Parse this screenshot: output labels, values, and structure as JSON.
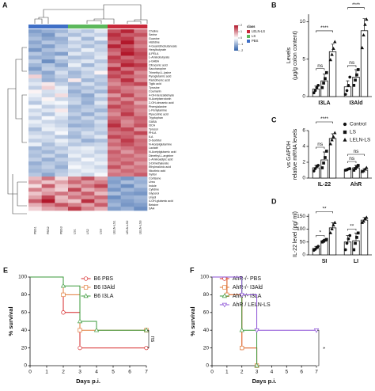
{
  "chart_data": [
    {
      "type": "heatmap",
      "panel": "A",
      "legend_title": "class",
      "classes": [
        {
          "name": "LELN-LS",
          "color": "#c8283a"
        },
        {
          "name": "LS",
          "color": "#5cb85c"
        },
        {
          "name": "PBS",
          "color": "#3f6fc6"
        }
      ],
      "columns": [
        "PBS1",
        "PBS2",
        "PBS3",
        "LS1",
        "LS2",
        "LS3",
        "LELN-LS1",
        "LELN-LS2",
        "LELN-LS3"
      ],
      "column_colors": [
        "#3f6fc6",
        "#3f6fc6",
        "#3f6fc6",
        "#5cb85c",
        "#5cb85c",
        "#5cb85c",
        "#c8283a",
        "#c8283a",
        "#c8283a"
      ],
      "zlim": [
        -2,
        2
      ],
      "zticks": [
        -2,
        -1,
        0,
        1,
        2
      ],
      "rows": [
        "Choline",
        "Serine",
        "Guanine",
        "Histidine",
        "4-Guanidinobutanoate",
        "Hexylbutyrate",
        "β-PELA",
        "L-Aminobutyrate",
        "γ-GABA",
        "Citraconic acid",
        "Saccharopine",
        "Trimethyl-L-lysine",
        "Pyroglutamic acid",
        "Pantothenic acid",
        "Tiglic acid",
        "Tyrosine",
        "Coumarin",
        "4-OH-benzaldehyde",
        "N-Acetylserotonin",
        "2-OH-cinnamic acid",
        "Phenylalanine",
        "L-Pentylamine",
        "Pipecolinic acid",
        "Tryptophan",
        "GABA",
        "I3CA",
        "Tyrosol",
        "PHLA",
        "ILA",
        "D-Sorbitol",
        "N-Acetylglutamine",
        "Lactate",
        "N-Acetylglutamic acid",
        "Dimethyl-L-arginine",
        "L-Aminoadipic acid",
        "3-Dimethylurate",
        "Ethylmalonic acid",
        "Nicotinic acid",
        "Xylitol",
        "Cortisone",
        "Urea",
        "Indole",
        "Cytidine",
        "Glycerol",
        "Uracil",
        "4-OH-glutamic acid",
        "Betaine",
        "SAH"
      ],
      "values": [
        [
          -1.2,
          -1.0,
          -0.9,
          -0.5,
          -0.7,
          -0.3,
          1.5,
          1.9,
          1.2
        ],
        [
          -1.0,
          -1.3,
          -0.6,
          -0.8,
          -0.4,
          -0.6,
          1.8,
          1.4,
          1.5
        ],
        [
          -0.8,
          -1.1,
          -1.0,
          -0.3,
          -0.9,
          -0.2,
          1.6,
          1.7,
          1.1
        ],
        [
          -1.1,
          -0.7,
          -0.9,
          -0.6,
          -0.5,
          -0.8,
          1.3,
          2.0,
          1.3
        ],
        [
          -0.9,
          -1.2,
          -0.7,
          -0.4,
          -0.8,
          -0.5,
          1.9,
          1.5,
          1.1
        ],
        [
          -1.3,
          -0.8,
          -0.6,
          -0.7,
          -0.2,
          -0.6,
          1.4,
          1.8,
          1.4
        ],
        [
          -0.7,
          -1.0,
          -1.2,
          -0.3,
          -0.6,
          -0.4,
          1.2,
          2.0,
          1.6
        ],
        [
          -1.0,
          -0.9,
          -0.5,
          -0.8,
          -0.7,
          -0.3,
          1.7,
          1.3,
          1.5
        ],
        [
          -0.6,
          -1.4,
          -0.8,
          -0.5,
          -0.3,
          -0.7,
          1.5,
          1.6,
          1.3
        ],
        [
          -0.9,
          -0.7,
          -1.1,
          -0.2,
          -0.9,
          -0.4,
          1.1,
          1.9,
          1.7
        ],
        [
          -1.2,
          -0.6,
          -0.7,
          -0.6,
          -0.4,
          -0.5,
          1.8,
          1.2,
          1.4
        ],
        [
          -0.8,
          -1.1,
          -0.4,
          -0.9,
          -0.6,
          0.1,
          1.4,
          1.7,
          1.0
        ],
        [
          0.4,
          -0.9,
          -0.6,
          -0.8,
          -0.5,
          -0.7,
          1.6,
          1.3,
          1.2
        ],
        [
          -0.5,
          -1.0,
          -0.8,
          0.2,
          -0.9,
          -0.6,
          1.2,
          1.8,
          1.0
        ],
        [
          -0.3,
          0.2,
          -0.6,
          -0.9,
          -0.4,
          -0.8,
          1.0,
          1.4,
          1.6
        ],
        [
          -0.6,
          0.4,
          -0.2,
          -0.7,
          -0.8,
          -0.5,
          1.3,
          1.1,
          0.9
        ],
        [
          0.1,
          -0.4,
          -0.3,
          -1.0,
          -0.6,
          -0.9,
          1.5,
          1.2,
          1.1
        ],
        [
          -0.2,
          -0.5,
          0.3,
          -0.8,
          -1.1,
          -0.4,
          0.9,
          1.6,
          1.0
        ],
        [
          -0.4,
          0.1,
          -0.5,
          -0.6,
          -0.9,
          -0.7,
          1.4,
          1.0,
          1.3
        ],
        [
          -0.7,
          -0.2,
          -0.1,
          -0.5,
          -1.0,
          -0.3,
          1.1,
          1.5,
          0.8
        ],
        [
          -0.1,
          -0.6,
          -0.4,
          -0.9,
          -0.7,
          -0.6,
          1.6,
          1.3,
          1.2
        ],
        [
          -0.5,
          -0.3,
          0.2,
          -0.8,
          -0.6,
          -0.9,
          1.2,
          1.4,
          1.0
        ],
        [
          -0.3,
          -0.7,
          -0.2,
          -0.6,
          -1.0,
          -0.5,
          1.0,
          1.7,
          1.1
        ],
        [
          -0.6,
          -0.1,
          -0.4,
          -0.9,
          -0.5,
          -0.8,
          1.3,
          1.2,
          1.4
        ],
        [
          -0.2,
          -0.5,
          -0.6,
          -0.7,
          -0.8,
          -0.4,
          1.5,
          1.0,
          1.3
        ],
        [
          -0.4,
          -0.3,
          -0.5,
          -1.0,
          -0.9,
          -0.6,
          1.8,
          1.1,
          1.5
        ],
        [
          -0.8,
          -0.2,
          -0.3,
          -0.6,
          -0.7,
          -0.5,
          1.4,
          1.6,
          0.9
        ],
        [
          -0.5,
          -0.6,
          -0.1,
          -0.8,
          -0.4,
          -0.7,
          1.2,
          1.3,
          1.6
        ],
        [
          -0.3,
          -0.4,
          -0.7,
          -0.9,
          -0.6,
          -0.3,
          1.6,
          1.4,
          1.0
        ],
        [
          -0.6,
          -0.5,
          -0.2,
          -0.5,
          -1.0,
          -0.8,
          1.1,
          1.7,
          1.3
        ],
        [
          -0.2,
          -0.8,
          -0.4,
          -0.7,
          -0.6,
          -0.5,
          1.3,
          1.5,
          1.2
        ],
        [
          -0.9,
          -0.6,
          -0.7,
          -0.3,
          -0.2,
          -0.4,
          1.0,
          1.2,
          1.4
        ],
        [
          -0.7,
          -0.9,
          -0.5,
          -0.4,
          -0.3,
          -0.6,
          1.4,
          0.9,
          1.3
        ],
        [
          -0.8,
          -0.5,
          -0.9,
          -0.2,
          -0.5,
          -0.3,
          1.2,
          1.3,
          1.0
        ],
        [
          -0.6,
          -1.0,
          -0.6,
          -0.5,
          -0.1,
          -0.4,
          1.3,
          1.1,
          1.2
        ],
        [
          -1.0,
          -0.7,
          -0.8,
          -0.3,
          -0.4,
          -0.2,
          1.1,
          1.4,
          0.9
        ],
        [
          -0.8,
          -0.6,
          -1.0,
          -0.1,
          -0.3,
          -0.5,
          1.5,
          1.0,
          1.2
        ],
        [
          -0.9,
          -0.8,
          -0.7,
          -0.4,
          -0.2,
          -0.3,
          1.0,
          1.3,
          1.1
        ],
        [
          -0.7,
          -1.1,
          -0.6,
          -0.3,
          -0.5,
          -0.1,
          1.2,
          1.1,
          1.4
        ],
        [
          0.6,
          1.2,
          0.3,
          1.0,
          1.5,
          0.8,
          -1.1,
          -1.3,
          -0.9
        ],
        [
          0.9,
          0.5,
          0.8,
          1.3,
          0.9,
          1.1,
          -1.2,
          -0.8,
          -1.0
        ],
        [
          0.3,
          1.4,
          0.5,
          0.8,
          1.2,
          1.6,
          -1.0,
          -1.4,
          -0.8
        ],
        [
          1.1,
          0.7,
          0.4,
          1.6,
          0.7,
          1.0,
          -1.3,
          -0.9,
          -1.1
        ],
        [
          0.5,
          0.9,
          1.2,
          0.9,
          1.4,
          0.6,
          -0.8,
          -1.2,
          -1.3
        ],
        [
          0.8,
          1.6,
          0.6,
          1.2,
          1.0,
          1.3,
          -1.4,
          -1.0,
          -0.9
        ],
        [
          1.4,
          2.0,
          0.7,
          0.5,
          1.8,
          0.9,
          -1.1,
          -1.2,
          -1.0
        ],
        [
          0.7,
          1.1,
          1.5,
          1.1,
          0.8,
          1.4,
          -0.9,
          -1.3,
          -1.2
        ],
        [
          0.4,
          0.8,
          0.9,
          1.7,
          1.1,
          0.7,
          -1.2,
          -1.0,
          -1.4
        ]
      ]
    },
    {
      "type": "bar",
      "panel": "B",
      "ylabel": [
        "Levels",
        "(μg/g colon content)"
      ],
      "categories": [
        "I3LA",
        "I3Ald"
      ],
      "ylim": [
        0,
        11
      ],
      "yticks": [
        0,
        5,
        10
      ],
      "series": [
        {
          "marker": "circle",
          "values": [
            1.0,
            1.3
          ],
          "errors": [
            0.4,
            0.8
          ],
          "points": [
            [
              0.5,
              0.8,
              1.2,
              1.5
            ],
            [
              0.3,
              0.8,
              1.5,
              2.6
            ]
          ]
        },
        {
          "marker": "square",
          "values": [
            2.1,
            2.6
          ],
          "errors": [
            0.9,
            1.0
          ],
          "points": [
            [
              1.2,
              1.8,
              2.4,
              3.2
            ],
            [
              1.5,
              2.2,
              2.9,
              3.6
            ]
          ]
        },
        {
          "marker": "triangle",
          "values": [
            6.0,
            8.8
          ],
          "errors": [
            1.0,
            1.6
          ],
          "points": [
            [
              4.9,
              5.6,
              6.4,
              7.3
            ],
            [
              6.5,
              8.2,
              9.6,
              10.3
            ]
          ]
        }
      ],
      "significance": [
        [
          "ns",
          "****"
        ],
        [
          "ns",
          "****"
        ]
      ]
    },
    {
      "type": "bar",
      "panel": "C",
      "ylabel": [
        "vs GAPDH",
        "relative mRNA levels"
      ],
      "categories": [
        "IL-22",
        "AhR"
      ],
      "ylim": [
        0,
        6
      ],
      "yticks": [
        0,
        2,
        4,
        6
      ],
      "legend": "upper right",
      "series": [
        {
          "name": "Control",
          "marker": "circle",
          "values": [
            1.3,
            1.1
          ],
          "errors": [
            0.3,
            0.1
          ],
          "points": [
            [
              0.9,
              1.2,
              1.5,
              1.6
            ],
            [
              1.0,
              1.05,
              1.15,
              1.2
            ]
          ]
        },
        {
          "name": "LS",
          "marker": "square",
          "values": [
            2.3,
            1.3
          ],
          "errors": [
            1.0,
            0.3
          ],
          "points": [
            [
              1.3,
              1.9,
              2.6,
              3.4
            ],
            [
              1.0,
              1.2,
              1.4,
              1.6
            ]
          ]
        },
        {
          "name": "LELN-LS",
          "marker": "triangle",
          "values": [
            5.0,
            1.0
          ],
          "errors": [
            0.6,
            0.2
          ],
          "points": [
            [
              4.3,
              4.8,
              5.2,
              5.7
            ],
            [
              0.8,
              0.9,
              1.1,
              1.3
            ]
          ]
        }
      ],
      "significance": [
        [
          "ns",
          "****"
        ],
        [
          "ns",
          "ns"
        ]
      ]
    },
    {
      "type": "bar",
      "panel": "D",
      "ylabel": [
        "IL-22 level (pg/ ml)"
      ],
      "categories": [
        "SI",
        "LI"
      ],
      "ylim": [
        0,
        160
      ],
      "yticks": [
        0,
        50,
        100,
        150
      ],
      "series": [
        {
          "marker": "circle",
          "values": [
            25,
            50
          ],
          "errors": [
            8,
            25
          ],
          "points": [
            [
              18,
              22,
              28,
              33
            ],
            [
              20,
              45,
              62,
              75
            ]
          ]
        },
        {
          "marker": "square",
          "values": [
            55,
            55
          ],
          "errors": [
            5,
            30
          ],
          "points": [
            [
              50,
              53,
              57,
              60
            ],
            [
              20,
              45,
              68,
              85
            ]
          ]
        },
        {
          "marker": "triangle",
          "values": [
            105,
            135
          ],
          "errors": [
            20,
            10
          ],
          "points": [
            [
              85,
              100,
              115,
              125
            ],
            [
              125,
              130,
              140,
              145
            ]
          ]
        }
      ],
      "significance": [
        [
          "*",
          "**"
        ],
        [
          "**"
        ]
      ]
    },
    {
      "type": "survival",
      "panel": "E",
      "xlabel": "Days p.i.",
      "ylabel": "% survival",
      "xlim": [
        0,
        7
      ],
      "xticks": [
        0,
        1,
        2,
        3,
        4,
        5,
        6,
        7
      ],
      "ylim": [
        0,
        100
      ],
      "yticks": [
        0,
        20,
        40,
        60,
        80,
        100
      ],
      "legend": "upper right",
      "annotation": "ns",
      "series": [
        {
          "name": "B6 PBS",
          "color": "#d62728",
          "marker": "circle",
          "x": [
            0,
            2,
            3,
            7
          ],
          "values": [
            100,
            60,
            20,
            20
          ]
        },
        {
          "name": "B6 I3Ald",
          "color": "#e07b39",
          "marker": "square",
          "x": [
            0,
            2,
            3,
            7
          ],
          "values": [
            100,
            80,
            40,
            40
          ]
        },
        {
          "name": "B6 I3LA",
          "color": "#3a9a3a",
          "marker": "triangle",
          "x": [
            0,
            2,
            3,
            4,
            7
          ],
          "values": [
            100,
            90,
            50,
            40,
            40
          ]
        }
      ]
    },
    {
      "type": "survival",
      "panel": "F",
      "xlabel": "Days p.i.",
      "ylabel": "% survival",
      "xlim": [
        0,
        7
      ],
      "xticks": [
        0,
        1,
        2,
        3,
        4,
        5,
        6,
        7
      ],
      "ylim": [
        0,
        100
      ],
      "yticks": [
        0,
        20,
        40,
        60,
        80,
        100
      ],
      "legend": "upper left",
      "annotation": "*",
      "series": [
        {
          "name": "AhR-/- PBS",
          "color": "#d62728",
          "marker": "circle",
          "x": [
            0,
            1,
            2,
            3
          ],
          "values": [
            100,
            80,
            20,
            0
          ]
        },
        {
          "name": "AhR-/- I3Ald",
          "color": "#e07b39",
          "marker": "square",
          "x": [
            0,
            1,
            2,
            3
          ],
          "values": [
            100,
            80,
            20,
            0
          ]
        },
        {
          "name": "AhR-/- I3LA",
          "color": "#3a9a3a",
          "marker": "triangle",
          "x": [
            0,
            2,
            3
          ],
          "values": [
            100,
            40,
            0
          ]
        },
        {
          "name": "AhR / LELN-LS",
          "color": "#8a4fd6",
          "marker": "triangle-down",
          "x": [
            0,
            2,
            3,
            7
          ],
          "values": [
            100,
            80,
            40,
            40
          ]
        }
      ]
    }
  ]
}
